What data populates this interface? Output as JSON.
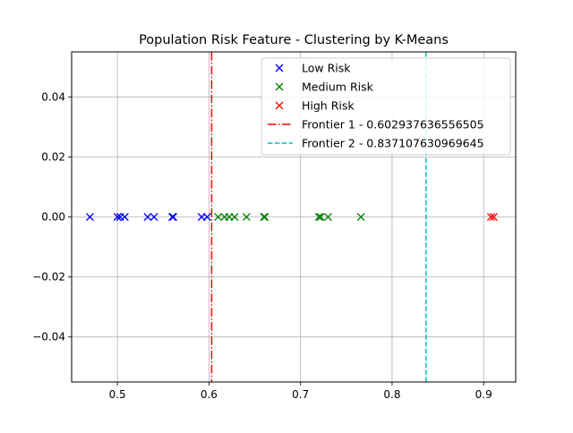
{
  "chart_data": {
    "type": "scatter",
    "title": "Population Risk Feature - Clustering by K-Means",
    "xlabel": "",
    "ylabel": "",
    "xlim": [
      0.45,
      0.935
    ],
    "ylim": [
      -0.055,
      0.055
    ],
    "xticks": [
      0.5,
      0.6,
      0.7,
      0.8,
      0.9
    ],
    "xtick_labels": [
      "0.5",
      "0.6",
      "0.7",
      "0.8",
      "0.9"
    ],
    "yticks": [
      0.04,
      0.02,
      0.0,
      -0.02,
      -0.04
    ],
    "ytick_labels": [
      "0.04",
      "0.02",
      "0.00",
      "−0.02",
      "−0.04"
    ],
    "grid": true,
    "legend_position": "top-right",
    "marker": "x",
    "series": [
      {
        "name": "Low Risk",
        "color": "#0000ff",
        "x": [
          0.47,
          0.5,
          0.503,
          0.508,
          0.533,
          0.54,
          0.56,
          0.561,
          0.592,
          0.598
        ],
        "y": [
          0,
          0,
          0,
          0,
          0,
          0,
          0,
          0,
          0,
          0
        ]
      },
      {
        "name": "Medium Risk",
        "color": "#008000",
        "x": [
          0.61,
          0.617,
          0.622,
          0.628,
          0.641,
          0.66,
          0.661,
          0.72,
          0.722,
          0.73,
          0.766
        ],
        "y": [
          0,
          0,
          0,
          0,
          0,
          0,
          0,
          0,
          0,
          0,
          0
        ]
      },
      {
        "name": "High Risk",
        "color": "#ff0000",
        "x": [
          0.908,
          0.911
        ],
        "y": [
          0,
          0
        ]
      }
    ],
    "vlines": [
      {
        "name": "Frontier 1 - 0.602937636556505",
        "x": 0.602937636556505,
        "color": "#ff0000",
        "style": "dashdot"
      },
      {
        "name": "Frontier 2 - 0.837107630969645",
        "x": 0.837107630969645,
        "color": "#00bfbf",
        "style": "dashed"
      }
    ]
  }
}
